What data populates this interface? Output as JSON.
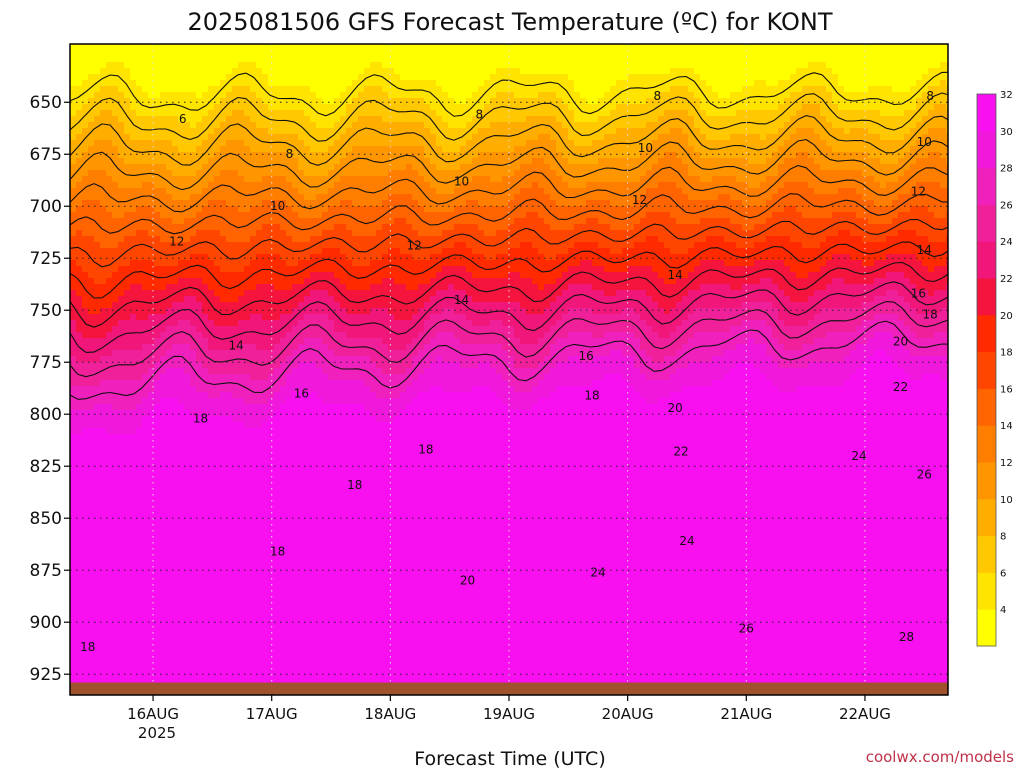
{
  "chart_data": {
    "type": "heatmap",
    "title": "2025081506 GFS Forecast Temperature (ºC) for KONT",
    "xlabel": "Forecast Time (UTC)",
    "ylabel": "",
    "y_axis": {
      "label": "",
      "ticks": [
        650,
        675,
        700,
        725,
        750,
        775,
        800,
        825,
        850,
        875,
        900,
        925
      ],
      "range_hpa": [
        622,
        935
      ],
      "inverted": true
    },
    "x_axis": {
      "ticks": [
        "16AUG",
        "17AUG",
        "18AUG",
        "19AUG",
        "20AUG",
        "21AUG",
        "22AUG"
      ],
      "year_label": "2025",
      "range_days": [
        -0.7,
        6.7
      ]
    },
    "grid": true,
    "legend": "right colorbar",
    "colorbar": {
      "ticks": [
        "4",
        "6",
        "8",
        "10",
        "12",
        "14",
        "16",
        "18",
        "20",
        "22",
        "24",
        "26",
        "28",
        "30",
        "32"
      ],
      "colors": [
        "#ffff00",
        "#ffe400",
        "#ffc800",
        "#ffae00",
        "#ff9600",
        "#ff7e00",
        "#ff6400",
        "#ff4600",
        "#ff2a00",
        "#f5143e",
        "#f0167a",
        "#f0209a",
        "#f020bc",
        "#f018da",
        "#f810f0"
      ]
    },
    "contour_levels": [
      6,
      8,
      10,
      12,
      14,
      16,
      18,
      20,
      22,
      24,
      26,
      28
    ],
    "contour_labels": [
      {
        "text": "6",
        "day": 0.25,
        "p": 658
      },
      {
        "text": "8",
        "day": 1.15,
        "p": 675
      },
      {
        "text": "8",
        "day": 2.75,
        "p": 656
      },
      {
        "text": "8",
        "day": 4.25,
        "p": 647
      },
      {
        "text": "8",
        "day": 6.55,
        "p": 647
      },
      {
        "text": "10",
        "day": 1.05,
        "p": 700
      },
      {
        "text": "10",
        "day": 2.6,
        "p": 688
      },
      {
        "text": "10",
        "day": 4.15,
        "p": 672
      },
      {
        "text": "10",
        "day": 6.5,
        "p": 669
      },
      {
        "text": "12",
        "day": 0.2,
        "p": 717
      },
      {
        "text": "12",
        "day": 2.2,
        "p": 719
      },
      {
        "text": "12",
        "day": 4.1,
        "p": 697
      },
      {
        "text": "12",
        "day": 6.45,
        "p": 693
      },
      {
        "text": "14",
        "day": 0.7,
        "p": 767
      },
      {
        "text": "14",
        "day": 2.6,
        "p": 745
      },
      {
        "text": "14",
        "day": 4.4,
        "p": 733
      },
      {
        "text": "14",
        "day": 6.5,
        "p": 721
      },
      {
        "text": "16",
        "day": 1.25,
        "p": 790
      },
      {
        "text": "16",
        "day": 3.65,
        "p": 772
      },
      {
        "text": "16",
        "day": 6.45,
        "p": 742
      },
      {
        "text": "18",
        "day": 0.4,
        "p": 802
      },
      {
        "text": "18",
        "day": 2.3,
        "p": 817
      },
      {
        "text": "18",
        "day": 3.7,
        "p": 791
      },
      {
        "text": "18",
        "day": 6.55,
        "p": 752
      },
      {
        "text": "18",
        "day": 1.7,
        "p": 834
      },
      {
        "text": "18",
        "day": 1.05,
        "p": 866
      },
      {
        "text": "18",
        "day": -0.55,
        "p": 912
      },
      {
        "text": "20",
        "day": 4.4,
        "p": 797
      },
      {
        "text": "20",
        "day": 6.3,
        "p": 765
      },
      {
        "text": "20",
        "day": 2.65,
        "p": 880
      },
      {
        "text": "22",
        "day": 4.45,
        "p": 818
      },
      {
        "text": "22",
        "day": 6.3,
        "p": 787
      },
      {
        "text": "24",
        "day": 5.95,
        "p": 820
      },
      {
        "text": "24",
        "day": 4.5,
        "p": 861
      },
      {
        "text": "24",
        "day": 3.75,
        "p": 876
      },
      {
        "text": "26",
        "day": 6.5,
        "p": 829
      },
      {
        "text": "26",
        "day": 5.0,
        "p": 903
      },
      {
        "text": "28",
        "day": 6.35,
        "p": 907
      }
    ],
    "ground_pressure_hpa": 929,
    "credit": "coolwx.com/models"
  }
}
